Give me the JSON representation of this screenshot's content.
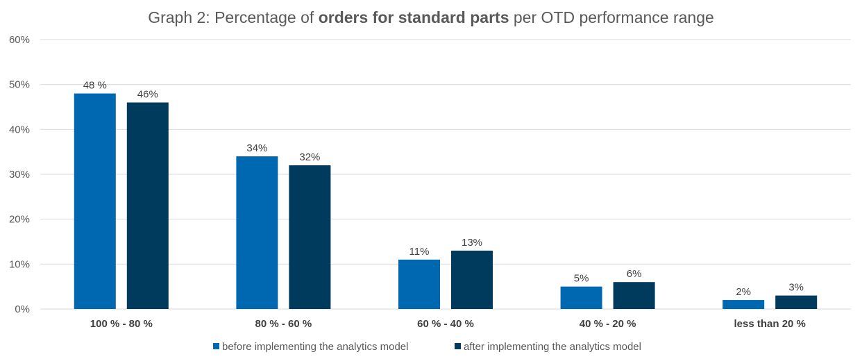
{
  "title": {
    "part1": "Graph 2: Percentage of ",
    "part2_bold": "orders for standard parts",
    "part3": " per OTD performance range"
  },
  "chart_data": {
    "type": "bar",
    "title": "Graph 2: Percentage of orders for standard parts per OTD performance range",
    "categories": [
      "100 % - 80 %",
      "80 % - 60 %",
      "60 % - 40 %",
      "40 % - 20 %",
      "less than 20 %"
    ],
    "series": [
      {
        "name": "before implementing the analytics model",
        "values": [
          48,
          34,
          11,
          5,
          2
        ],
        "labels": [
          "48 %",
          "34%",
          "11%",
          "5%",
          "2%"
        ],
        "color": "#0067b1"
      },
      {
        "name": "after implementing the analytics model",
        "values": [
          46,
          32,
          13,
          6,
          3
        ],
        "labels": [
          "46%",
          "32%",
          "13%",
          "6%",
          "3%"
        ],
        "color": "#003a5d"
      }
    ],
    "ylim": [
      0,
      60
    ],
    "yticks": [
      0,
      10,
      20,
      30,
      40,
      50,
      60
    ],
    "ytick_labels": [
      "0%",
      "10%",
      "20%",
      "30%",
      "40%",
      "50%",
      "60%"
    ],
    "grid": true,
    "legend_position": "bottom"
  }
}
